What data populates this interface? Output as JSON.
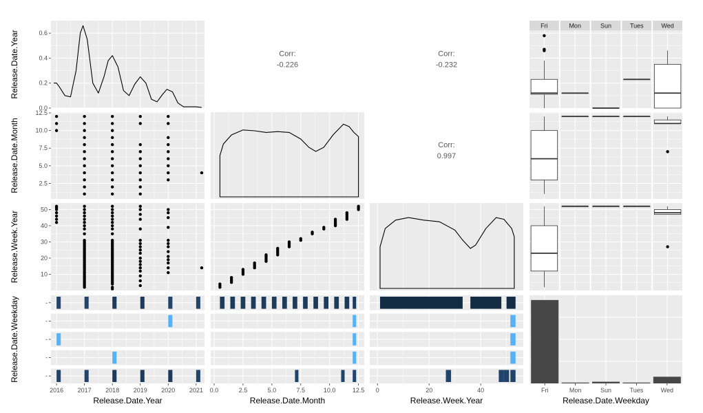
{
  "chart_data": {
    "type": "scatter-matrix",
    "variables": [
      "Release.Date.Year",
      "Release.Date.Month",
      "Release.Week.Year",
      "Release.Date.Weekday"
    ],
    "weekday_levels": [
      "Fri",
      "Mon",
      "Sun",
      "Tues",
      "Wed"
    ],
    "x_ticks": {
      "year": [
        "2016",
        "2017",
        "2018",
        "2019",
        "2020",
        "2021"
      ],
      "month": [
        "0.0",
        "2.5",
        "5.0",
        "7.5",
        "10.0",
        "12.5"
      ],
      "week": [
        "0",
        "20",
        "40"
      ],
      "weekday": [
        "Fri",
        "Mon",
        "Sun",
        "Tues",
        "Wed"
      ]
    },
    "y_ticks": {
      "density_year": [
        "0.0",
        "0.2",
        "0.4",
        "0.6"
      ],
      "month": [
        "2.5",
        "5.0",
        "7.5",
        "10.0",
        "12.5"
      ],
      "week": [
        "10",
        "20",
        "30",
        "40",
        "50"
      ]
    },
    "correlations": [
      {
        "row": 0,
        "col": 1,
        "label": "Corr:",
        "value": "-0.226"
      },
      {
        "row": 0,
        "col": 2,
        "label": "Corr:",
        "value": "-0.232"
      },
      {
        "row": 1,
        "col": 2,
        "label": "Corr:",
        "value": "0.997"
      }
    ],
    "year_density": {
      "x": [
        2015.9,
        2016.0,
        2016.1,
        2016.3,
        2016.5,
        2016.7,
        2016.85,
        2016.95,
        2017.1,
        2017.3,
        2017.5,
        2017.7,
        2017.85,
        2018.0,
        2018.2,
        2018.4,
        2018.6,
        2018.8,
        2019.0,
        2019.2,
        2019.4,
        2019.6,
        2019.8,
        2019.95,
        2020.15,
        2020.35,
        2020.55,
        2020.8,
        2021.0,
        2021.2
      ],
      "y": [
        0.2,
        0.2,
        0.17,
        0.1,
        0.09,
        0.3,
        0.6,
        0.66,
        0.55,
        0.2,
        0.12,
        0.25,
        0.38,
        0.42,
        0.33,
        0.14,
        0.1,
        0.19,
        0.25,
        0.2,
        0.07,
        0.05,
        0.11,
        0.15,
        0.13,
        0.04,
        0.01,
        0.01,
        0.01,
        0.005
      ]
    },
    "month_density": {
      "x": [
        0.5,
        0.5,
        0.8,
        1.5,
        2.5,
        3.5,
        4.5,
        5.5,
        6.5,
        7.5,
        8.2,
        8.8,
        9.5,
        10.3,
        11.2,
        11.7,
        12.1,
        12.5,
        12.5
      ],
      "y": [
        0.0,
        0.5,
        0.64,
        0.75,
        0.81,
        0.8,
        0.78,
        0.79,
        0.78,
        0.7,
        0.6,
        0.55,
        0.6,
        0.75,
        0.88,
        0.85,
        0.78,
        0.73,
        0.0
      ]
    },
    "week_density": {
      "x": [
        1,
        1,
        3,
        7,
        12,
        18,
        24,
        30,
        33,
        36,
        38,
        42,
        46,
        49,
        52,
        53,
        53
      ],
      "y": [
        0.0,
        0.5,
        0.72,
        0.82,
        0.85,
        0.82,
        0.8,
        0.7,
        0.58,
        0.48,
        0.52,
        0.72,
        0.85,
        0.83,
        0.72,
        0.62,
        0.0
      ]
    },
    "scatter_year_month": [
      [
        2016,
        10
      ],
      [
        2016,
        11
      ],
      [
        2016,
        12
      ],
      [
        2017,
        1
      ],
      [
        2017,
        2
      ],
      [
        2017,
        3
      ],
      [
        2017,
        4
      ],
      [
        2017,
        5
      ],
      [
        2017,
        6
      ],
      [
        2017,
        7
      ],
      [
        2017,
        8
      ],
      [
        2017,
        9
      ],
      [
        2017,
        10
      ],
      [
        2017,
        11
      ],
      [
        2017,
        12
      ],
      [
        2018,
        1
      ],
      [
        2018,
        2
      ],
      [
        2018,
        3
      ],
      [
        2018,
        4
      ],
      [
        2018,
        5
      ],
      [
        2018,
        6
      ],
      [
        2018,
        7
      ],
      [
        2018,
        8
      ],
      [
        2018,
        9
      ],
      [
        2018,
        10
      ],
      [
        2018,
        11
      ],
      [
        2018,
        12
      ],
      [
        2019,
        1
      ],
      [
        2019,
        2
      ],
      [
        2019,
        3
      ],
      [
        2019,
        4
      ],
      [
        2019,
        5
      ],
      [
        2019,
        6
      ],
      [
        2019,
        7
      ],
      [
        2019,
        8
      ],
      [
        2019,
        11
      ],
      [
        2019,
        12
      ],
      [
        2020,
        3
      ],
      [
        2020,
        4
      ],
      [
        2020,
        5
      ],
      [
        2020,
        6
      ],
      [
        2020,
        7
      ],
      [
        2020,
        8
      ],
      [
        2020,
        9
      ],
      [
        2020,
        11
      ],
      [
        2020,
        12
      ],
      [
        2021.2,
        4
      ]
    ],
    "scatter_year_week": [
      [
        2016,
        42
      ],
      [
        2016,
        44
      ],
      [
        2016,
        46
      ],
      [
        2016,
        48
      ],
      [
        2016,
        50
      ],
      [
        2016,
        51
      ],
      [
        2016,
        52
      ],
      [
        2017,
        2
      ],
      [
        2017,
        3
      ],
      [
        2017,
        4
      ],
      [
        2017,
        5
      ],
      [
        2017,
        6
      ],
      [
        2017,
        7
      ],
      [
        2017,
        8
      ],
      [
        2017,
        9
      ],
      [
        2017,
        10
      ],
      [
        2017,
        11
      ],
      [
        2017,
        12
      ],
      [
        2017,
        13
      ],
      [
        2017,
        14
      ],
      [
        2017,
        15
      ],
      [
        2017,
        16
      ],
      [
        2017,
        17
      ],
      [
        2017,
        18
      ],
      [
        2017,
        19
      ],
      [
        2017,
        20
      ],
      [
        2017,
        21
      ],
      [
        2017,
        22
      ],
      [
        2017,
        23
      ],
      [
        2017,
        24
      ],
      [
        2017,
        25
      ],
      [
        2017,
        26
      ],
      [
        2017,
        27
      ],
      [
        2017,
        28
      ],
      [
        2017,
        29
      ],
      [
        2017,
        30
      ],
      [
        2017,
        31
      ],
      [
        2017,
        35
      ],
      [
        2017,
        38
      ],
      [
        2017,
        40
      ],
      [
        2017,
        42
      ],
      [
        2017,
        44
      ],
      [
        2017,
        46
      ],
      [
        2017,
        48
      ],
      [
        2017,
        50
      ],
      [
        2017,
        52
      ],
      [
        2018,
        1
      ],
      [
        2018,
        2
      ],
      [
        2018,
        4
      ],
      [
        2018,
        5
      ],
      [
        2018,
        6
      ],
      [
        2018,
        7
      ],
      [
        2018,
        8
      ],
      [
        2018,
        9
      ],
      [
        2018,
        10
      ],
      [
        2018,
        11
      ],
      [
        2018,
        12
      ],
      [
        2018,
        13
      ],
      [
        2018,
        14
      ],
      [
        2018,
        15
      ],
      [
        2018,
        16
      ],
      [
        2018,
        17
      ],
      [
        2018,
        18
      ],
      [
        2018,
        19
      ],
      [
        2018,
        20
      ],
      [
        2018,
        21
      ],
      [
        2018,
        22
      ],
      [
        2018,
        23
      ],
      [
        2018,
        24
      ],
      [
        2018,
        25
      ],
      [
        2018,
        26
      ],
      [
        2018,
        27
      ],
      [
        2018,
        28
      ],
      [
        2018,
        29
      ],
      [
        2018,
        30
      ],
      [
        2018,
        31
      ],
      [
        2018,
        35
      ],
      [
        2018,
        38
      ],
      [
        2018,
        40
      ],
      [
        2018,
        42
      ],
      [
        2018,
        44
      ],
      [
        2018,
        46
      ],
      [
        2018,
        48
      ],
      [
        2018,
        50
      ],
      [
        2018,
        52
      ],
      [
        2019,
        3
      ],
      [
        2019,
        6
      ],
      [
        2019,
        9
      ],
      [
        2019,
        12
      ],
      [
        2019,
        14
      ],
      [
        2019,
        16
      ],
      [
        2019,
        18
      ],
      [
        2019,
        20
      ],
      [
        2019,
        23
      ],
      [
        2019,
        25
      ],
      [
        2019,
        27
      ],
      [
        2019,
        29
      ],
      [
        2019,
        31
      ],
      [
        2019,
        38
      ],
      [
        2019,
        44
      ],
      [
        2019,
        47
      ],
      [
        2019,
        50
      ],
      [
        2019,
        52
      ],
      [
        2020,
        11
      ],
      [
        2020,
        14
      ],
      [
        2020,
        17
      ],
      [
        2020,
        19
      ],
      [
        2020,
        21
      ],
      [
        2020,
        24
      ],
      [
        2020,
        27
      ],
      [
        2020,
        29
      ],
      [
        2020,
        31
      ],
      [
        2020,
        39
      ],
      [
        2020,
        45
      ],
      [
        2020,
        48
      ],
      [
        2020,
        50
      ],
      [
        2021.2,
        14
      ]
    ],
    "scatter_month_week": [
      [
        0.5,
        2
      ],
      [
        0.5,
        3
      ],
      [
        0.5,
        4
      ],
      [
        1.5,
        5
      ],
      [
        1.5,
        6
      ],
      [
        1.5,
        7
      ],
      [
        1.5,
        8
      ],
      [
        2.5,
        10
      ],
      [
        2.5,
        11
      ],
      [
        2.5,
        12
      ],
      [
        2.5,
        13
      ],
      [
        3.5,
        14
      ],
      [
        3.5,
        15
      ],
      [
        3.5,
        16
      ],
      [
        3.5,
        17
      ],
      [
        4.5,
        18
      ],
      [
        4.5,
        19
      ],
      [
        4.5,
        20
      ],
      [
        4.5,
        21
      ],
      [
        4.5,
        22
      ],
      [
        5.5,
        22
      ],
      [
        5.5,
        23
      ],
      [
        5.5,
        24
      ],
      [
        5.5,
        25
      ],
      [
        5.5,
        26
      ],
      [
        6.5,
        27
      ],
      [
        6.5,
        28
      ],
      [
        6.5,
        29
      ],
      [
        6.5,
        30
      ],
      [
        7.5,
        31
      ],
      [
        7.5,
        32
      ],
      [
        8.5,
        35
      ],
      [
        8.5,
        36
      ],
      [
        9.5,
        38
      ],
      [
        9.5,
        39
      ],
      [
        10.5,
        40
      ],
      [
        10.5,
        41
      ],
      [
        10.5,
        42
      ],
      [
        10.5,
        43
      ],
      [
        10.5,
        44
      ],
      [
        11.5,
        44
      ],
      [
        11.5,
        45
      ],
      [
        11.5,
        46
      ],
      [
        11.5,
        47
      ],
      [
        11.5,
        48
      ],
      [
        12.5,
        50
      ],
      [
        12.5,
        51
      ],
      [
        12.5,
        52
      ]
    ],
    "box_year_by_weekday": [
      {
        "level": "Fri",
        "min": 0.0,
        "q1": 0.11,
        "median": 0.12,
        "q3": 0.23,
        "max": 0.38,
        "outliers": [
          0.46,
          0.47,
          0.58
        ]
      },
      {
        "level": "Mon",
        "min": 0.12,
        "q1": 0.12,
        "median": 0.12,
        "q3": 0.12,
        "max": 0.12,
        "outliers": []
      },
      {
        "level": "Sun",
        "min": 0.0,
        "q1": 0.0,
        "median": 0.0,
        "q3": 0.0,
        "max": 0.0,
        "outliers": []
      },
      {
        "level": "Tues",
        "min": 0.23,
        "q1": 0.23,
        "median": 0.23,
        "q3": 0.23,
        "max": 0.23,
        "outliers": []
      },
      {
        "level": "Wed",
        "min": 0.0,
        "q1": 0.0,
        "median": 0.12,
        "q3": 0.35,
        "max": 0.46,
        "outliers": []
      }
    ],
    "box_month_by_weekday": [
      {
        "level": "Fri",
        "min": 1,
        "q1": 3,
        "median": 6,
        "q3": 10,
        "max": 12,
        "outliers": []
      },
      {
        "level": "Mon",
        "min": 12,
        "q1": 12,
        "median": 12,
        "q3": 12,
        "max": 12,
        "outliers": []
      },
      {
        "level": "Sun",
        "min": 12,
        "q1": 12,
        "median": 12,
        "q3": 12,
        "max": 12,
        "outliers": []
      },
      {
        "level": "Tues",
        "min": 12,
        "q1": 12,
        "median": 12,
        "q3": 12,
        "max": 12,
        "outliers": []
      },
      {
        "level": "Wed",
        "min": 11,
        "q1": 11,
        "median": 11,
        "q3": 11.5,
        "max": 12,
        "outliers": [
          7
        ]
      }
    ],
    "box_week_by_weekday": [
      {
        "level": "Fri",
        "min": 2,
        "q1": 12,
        "median": 23,
        "q3": 40,
        "max": 52,
        "outliers": []
      },
      {
        "level": "Mon",
        "min": 52,
        "q1": 52,
        "median": 52,
        "q3": 52,
        "max": 52,
        "outliers": []
      },
      {
        "level": "Sun",
        "min": 52,
        "q1": 52,
        "median": 52,
        "q3": 52,
        "max": 52,
        "outliers": []
      },
      {
        "level": "Tues",
        "min": 52,
        "q1": 52,
        "median": 52,
        "q3": 52,
        "max": 52,
        "outliers": []
      },
      {
        "level": "Wed",
        "min": 47,
        "q1": 47,
        "median": 48,
        "q3": 50,
        "max": 52,
        "outliers": [
          27
        ]
      }
    ],
    "weekday_counts": {
      "categories": [
        "Fri",
        "Mon",
        "Sun",
        "Tues",
        "Wed"
      ],
      "values": [
        100,
        1,
        2,
        1,
        8
      ],
      "ylim": [
        0,
        104
      ]
    },
    "hist_year_by_weekday": [
      {
        "level": "Fri",
        "bins": [
          [
            2016,
            2016.15,
            2
          ],
          [
            2017,
            2017.15,
            2
          ],
          [
            2018,
            2018.15,
            4
          ],
          [
            2019,
            2019.15,
            3
          ],
          [
            2020,
            2020.15,
            2
          ],
          [
            2021,
            2021.15,
            1
          ]
        ]
      },
      {
        "level": "Mon",
        "bins": [
          [
            2020,
            2020.15,
            1
          ]
        ]
      },
      {
        "level": "Sun",
        "bins": [
          [
            2016,
            2016.15,
            1
          ]
        ]
      },
      {
        "level": "Tues",
        "bins": [
          [
            2018,
            2018.15,
            1
          ]
        ]
      },
      {
        "level": "Wed",
        "bins": [
          [
            2016,
            2016.15,
            2
          ],
          [
            2017,
            2017.15,
            2
          ],
          [
            2018,
            2018.15,
            4
          ],
          [
            2019,
            2019.15,
            3
          ],
          [
            2020,
            2020.15,
            3
          ],
          [
            2021,
            2021.15,
            1
          ]
        ]
      }
    ],
    "hist_month_by_weekday": [
      {
        "level": "Fri",
        "bins": [
          [
            0.5,
            0.9,
            3
          ],
          [
            1.4,
            1.8,
            3
          ],
          [
            2.3,
            2.7,
            3
          ],
          [
            3.2,
            3.6,
            3
          ],
          [
            4.1,
            4.5,
            3
          ],
          [
            5.0,
            5.4,
            3
          ],
          [
            5.9,
            6.3,
            3
          ],
          [
            6.8,
            7.2,
            3
          ],
          [
            7.7,
            8.1,
            3
          ],
          [
            8.6,
            9.0,
            3
          ],
          [
            9.5,
            9.9,
            3
          ],
          [
            10.4,
            10.8,
            3
          ],
          [
            11.3,
            11.7,
            3
          ],
          [
            12.0,
            12.3,
            3
          ]
        ]
      },
      {
        "level": "Mon",
        "bins": [
          [
            12.0,
            12.3,
            1
          ]
        ]
      },
      {
        "level": "Sun",
        "bins": [
          [
            12.0,
            12.3,
            1
          ]
        ]
      },
      {
        "level": "Tues",
        "bins": [
          [
            12.0,
            12.3,
            1
          ]
        ]
      },
      {
        "level": "Wed",
        "bins": [
          [
            7.0,
            7.3,
            1
          ],
          [
            11.0,
            11.3,
            1
          ],
          [
            12.0,
            12.3,
            1
          ]
        ]
      }
    ],
    "hist_week_by_weekday": [
      {
        "level": "Fri",
        "bins": [
          [
            1,
            33,
            10
          ],
          [
            36,
            48,
            10
          ],
          [
            50,
            53.5,
            10
          ]
        ]
      },
      {
        "level": "Mon",
        "bins": [
          [
            51.5,
            53.5,
            1
          ]
        ]
      },
      {
        "level": "Sun",
        "bins": [
          [
            51.5,
            53.5,
            1
          ]
        ]
      },
      {
        "level": "Tues",
        "bins": [
          [
            51.5,
            53.5,
            1
          ]
        ]
      },
      {
        "level": "Wed",
        "bins": [
          [
            26.5,
            28.5,
            1
          ],
          [
            47,
            49,
            1
          ],
          [
            49,
            51,
            2
          ],
          [
            51.5,
            53.5,
            1
          ]
        ]
      }
    ]
  }
}
